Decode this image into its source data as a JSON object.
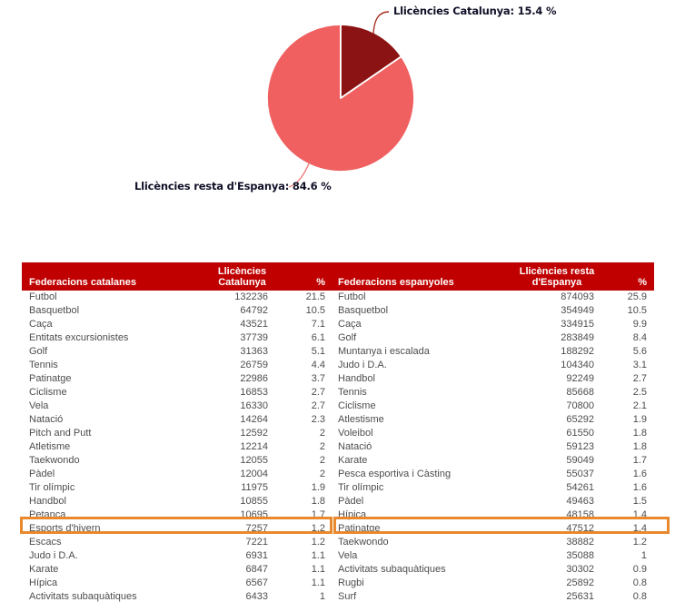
{
  "chart_data": {
    "type": "pie",
    "labels": [
      "Llicències Catalunya",
      "Llicències resta d'Espanya"
    ],
    "values": [
      15.4,
      84.6
    ],
    "unit": "%",
    "start_angle_deg": 0,
    "direction": "clockwise",
    "colors": {
      "catalunya": "#8C1313",
      "resta": "#F06060",
      "separator": "#FFFFFF",
      "leader_catalunya": "#A93226",
      "leader_resta": "#ED7C7C",
      "label_text": "#101028"
    },
    "annotations": {
      "catalunya": "Llicències Catalunya: 15.4 %",
      "resta": "Llicències resta d'Espanya: 84.6 %"
    }
  },
  "tables": {
    "header_bg": "#C00000",
    "header_text_color": "#FFFFFF",
    "body_text_color": "#4d4d4d",
    "catalanes": {
      "headers": {
        "name": "Federacions catalanes",
        "value": "Llicències Catalunya",
        "pct": "%"
      },
      "rows": [
        [
          "Futbol",
          "132236",
          "21.5"
        ],
        [
          "Basquetbol",
          "64792",
          "10.5"
        ],
        [
          "Caça",
          "43521",
          "7.1"
        ],
        [
          "Entitats excursionistes",
          "37739",
          "6.1"
        ],
        [
          "Golf",
          "31363",
          "5.1"
        ],
        [
          "Tennis",
          "26759",
          "4.4"
        ],
        [
          "Patinatge",
          "22986",
          "3.7"
        ],
        [
          "Ciclisme",
          "16853",
          "2.7"
        ],
        [
          "Vela",
          "16330",
          "2.7"
        ],
        [
          "Natació",
          "14264",
          "2.3"
        ],
        [
          "Pitch and Putt",
          "12592",
          "2"
        ],
        [
          "Atletisme",
          "12214",
          "2"
        ],
        [
          "Taekwondo",
          "12055",
          "2"
        ],
        [
          "Pàdel",
          "12004",
          "2"
        ],
        [
          "Tir olímpic",
          "11975",
          "1.9"
        ],
        [
          "Handbol",
          "10855",
          "1.8"
        ],
        [
          "Petanca",
          "10695",
          "1.7"
        ],
        [
          "Esports d'hivern",
          "7257",
          "1.2"
        ],
        [
          "Escacs",
          "7221",
          "1.2"
        ],
        [
          "Judo i D.A.",
          "6931",
          "1.1"
        ],
        [
          "Karate",
          "6847",
          "1.1"
        ],
        [
          "Hípica",
          "6567",
          "1.1"
        ],
        [
          "Activitats subaquàtiques",
          "6433",
          "1"
        ]
      ]
    },
    "espanyoles": {
      "headers": {
        "name": "Federacions espanyoles",
        "value": "Llicències resta d'Espanya",
        "pct": "%"
      },
      "rows": [
        [
          "Futbol",
          "874093",
          "25.9"
        ],
        [
          "Basquetbol",
          "354949",
          "10.5"
        ],
        [
          "Caça",
          "334915",
          "9.9"
        ],
        [
          "Golf",
          "283849",
          "8.4"
        ],
        [
          "Muntanya i escalada",
          "188292",
          "5.6"
        ],
        [
          "Judo i D.A.",
          "104340",
          "3.1"
        ],
        [
          "Handbol",
          "92249",
          "2.7"
        ],
        [
          "Tennis",
          "85668",
          "2.5"
        ],
        [
          "Ciclisme",
          "70800",
          "2.1"
        ],
        [
          "Atlestisme",
          "65292",
          "1.9"
        ],
        [
          "Voleibol",
          "61550",
          "1.8"
        ],
        [
          "Natació",
          "59123",
          "1.8"
        ],
        [
          "Karate",
          "59049",
          "1.7"
        ],
        [
          "Pesca esportiva i Càsting",
          "55037",
          "1.6"
        ],
        [
          "Tir olímpic",
          "54261",
          "1.6"
        ],
        [
          "Pàdel",
          "49463",
          "1.5"
        ],
        [
          "Hípica",
          "48158",
          "1.4"
        ],
        [
          "Patinatge",
          "47512",
          "1.4"
        ],
        [
          "Taekwondo",
          "38882",
          "1.2"
        ],
        [
          "Vela",
          "35088",
          "1"
        ],
        [
          "Activitats subaquàtiques",
          "30302",
          "0.9"
        ],
        [
          "Rugbi",
          "25892",
          "0.8"
        ],
        [
          "Surf",
          "25631",
          "0.8"
        ]
      ]
    }
  },
  "highlight": {
    "color": "#E8892D",
    "catalanes_row": "Esports d'hivern",
    "espanyoles_row": "Patinatge"
  }
}
